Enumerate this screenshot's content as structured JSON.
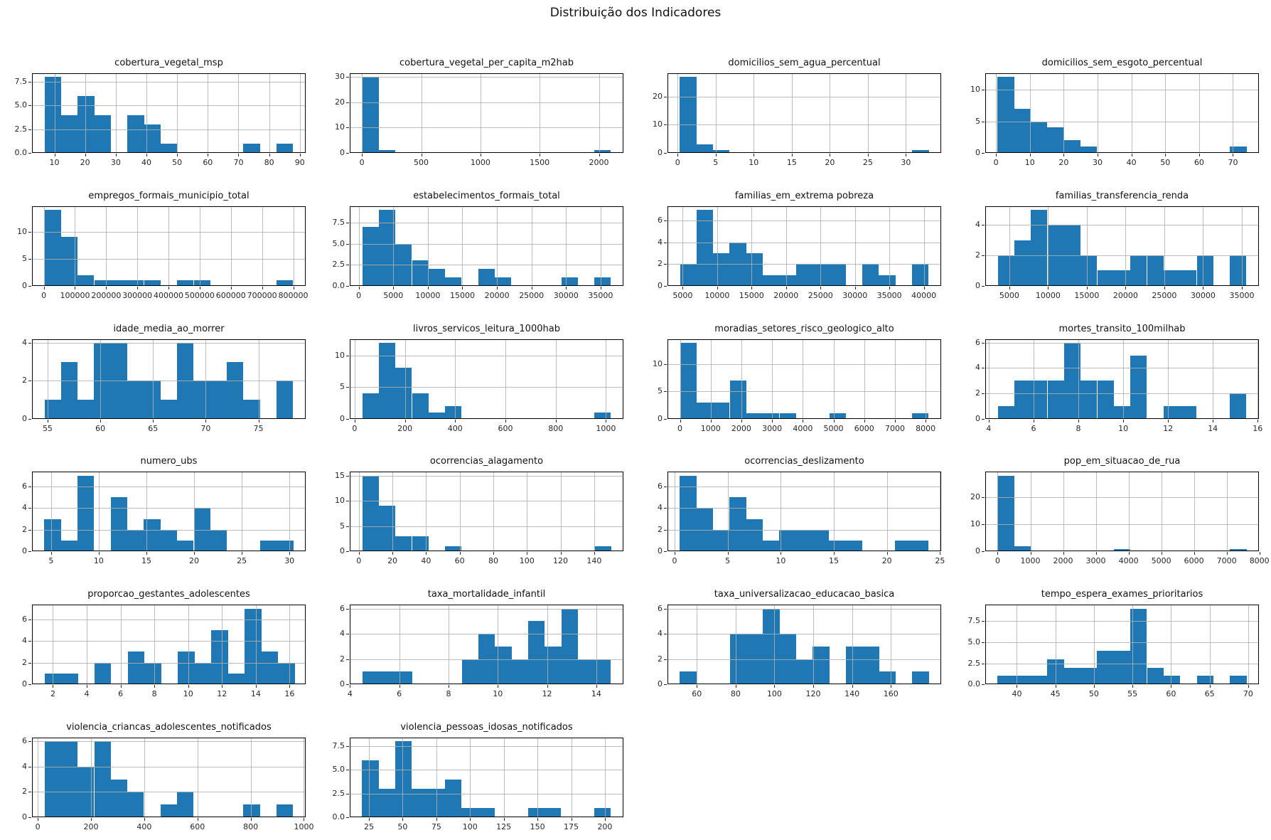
{
  "figure": {
    "title": "Distribuição dos Indicadores",
    "bar_color": "#1f77b4",
    "grid_color": "#b0b0b0",
    "spine_color": "#000000",
    "text_color": "#262626",
    "background": "#ffffff"
  },
  "chart_data": [
    {
      "type": "histogram",
      "title": "cobertura_vegetal_msp",
      "bin_start": 6.8,
      "bin_width": 5.4,
      "counts": [
        8,
        4,
        6,
        4,
        0,
        4,
        3,
        1,
        0,
        0,
        0,
        0,
        1,
        0,
        1
      ],
      "xlim": [
        2.7,
        91.9
      ],
      "xticks": [
        10,
        20,
        30,
        40,
        50,
        60,
        70,
        80,
        90
      ],
      "xtick_labels": [
        "10",
        "20",
        "30",
        "40",
        "50",
        "60",
        "70",
        "80",
        "90"
      ],
      "yticks": [
        0,
        2.5,
        5,
        7.5
      ],
      "ytick_labels": [
        "0.0",
        "2.5",
        "5.0",
        "7.5"
      ],
      "ymax": 8.4
    },
    {
      "type": "histogram",
      "title": "cobertura_vegetal_per_capita_m2hab",
      "bin_start": 2,
      "bin_width": 140,
      "counts": [
        30,
        1,
        0,
        0,
        0,
        0,
        0,
        0,
        0,
        0,
        0,
        0,
        0,
        0,
        1
      ],
      "xlim": [
        -103,
        2207
      ],
      "xticks": [
        0,
        500,
        1000,
        1500,
        2000
      ],
      "xtick_labels": [
        "0",
        "500",
        "1000",
        "1500",
        "2000"
      ],
      "yticks": [
        0,
        10,
        20,
        30
      ],
      "ytick_labels": [
        "0",
        "10",
        "20",
        "30"
      ],
      "ymax": 31.5
    },
    {
      "type": "histogram",
      "title": "domicilios_sem_agua_percentual",
      "bin_start": 0.3,
      "bin_width": 2.18,
      "counts": [
        27,
        3,
        1,
        0,
        0,
        0,
        0,
        0,
        0,
        0,
        0,
        0,
        0,
        0,
        1
      ],
      "xlim": [
        -1.33,
        34.63
      ],
      "xticks": [
        0,
        5,
        10,
        15,
        20,
        25,
        30
      ],
      "xtick_labels": [
        "0",
        "5",
        "10",
        "15",
        "20",
        "25",
        "30"
      ],
      "yticks": [
        0,
        10,
        20
      ],
      "ytick_labels": [
        "0",
        "10",
        "20"
      ],
      "ymax": 28.35
    },
    {
      "type": "histogram",
      "title": "domicilios_sem_esgoto_percentual",
      "bin_start": 0.5,
      "bin_width": 4.9,
      "counts": [
        12,
        7,
        5,
        4,
        2,
        1,
        0,
        0,
        0,
        0,
        0,
        0,
        0,
        0,
        1
      ],
      "xlim": [
        -3.17,
        77.67
      ],
      "xticks": [
        0,
        10,
        20,
        30,
        40,
        50,
        60,
        70
      ],
      "xtick_labels": [
        "0",
        "10",
        "20",
        "30",
        "40",
        "50",
        "60",
        "70"
      ],
      "yticks": [
        0,
        5,
        10
      ],
      "ytick_labels": [
        "0",
        "5",
        "10"
      ],
      "ymax": 12.6
    },
    {
      "type": "histogram",
      "title": "empregos_formais_municipio_total",
      "bin_start": 2000,
      "bin_width": 53200,
      "counts": [
        14,
        9,
        2,
        1,
        1,
        1,
        1,
        0,
        1,
        1,
        0,
        0,
        0,
        0,
        1
      ],
      "xlim": [
        -37900,
        839900
      ],
      "xticks": [
        0,
        100000,
        200000,
        300000,
        400000,
        500000,
        600000,
        700000,
        800000
      ],
      "xtick_labels": [
        "0",
        "100000",
        "200000",
        "300000",
        "400000",
        "500000",
        "600000",
        "700000",
        "800000"
      ],
      "yticks": [
        0,
        5,
        10
      ],
      "ytick_labels": [
        "0",
        "5",
        "10"
      ],
      "ymax": 14.7
    },
    {
      "type": "histogram",
      "title": "estabelecimentos_formais_total",
      "bin_start": 500,
      "bin_width": 2400,
      "counts": [
        7,
        9,
        5,
        3,
        2,
        1,
        0,
        2,
        1,
        0,
        0,
        0,
        1,
        0,
        1
      ],
      "xlim": [
        -1300,
        38300
      ],
      "xticks": [
        0,
        5000,
        10000,
        15000,
        20000,
        25000,
        30000,
        35000
      ],
      "xtick_labels": [
        "0",
        "5000",
        "10000",
        "15000",
        "20000",
        "25000",
        "30000",
        "35000"
      ],
      "yticks": [
        0,
        2.5,
        5,
        7.5
      ],
      "ytick_labels": [
        "0.0",
        "2.5",
        "5.0",
        "7.5"
      ],
      "ymax": 9.45
    },
    {
      "type": "histogram",
      "title": "familias_em_extrema pobreza",
      "bin_start": 4600,
      "bin_width": 2407,
      "counts": [
        2,
        7,
        3,
        4,
        3,
        1,
        1,
        2,
        2,
        2,
        0,
        2,
        1,
        0,
        2
      ],
      "xlim": [
        2795,
        42512
      ],
      "xticks": [
        5000,
        10000,
        15000,
        20000,
        25000,
        30000,
        35000,
        40000
      ],
      "xtick_labels": [
        "5000",
        "10000",
        "15000",
        "20000",
        "25000",
        "30000",
        "35000",
        "40000"
      ],
      "yticks": [
        0,
        2,
        4,
        6
      ],
      "ytick_labels": [
        "0",
        "2",
        "4",
        "6"
      ],
      "ymax": 7.35
    },
    {
      "type": "histogram",
      "title": "familias_transferencia_renda",
      "bin_start": 3500,
      "bin_width": 2140,
      "counts": [
        2,
        3,
        5,
        4,
        4,
        2,
        1,
        1,
        2,
        2,
        1,
        1,
        2,
        0,
        2
      ],
      "xlim": [
        1895,
        37205
      ],
      "xticks": [
        5000,
        10000,
        15000,
        20000,
        25000,
        30000,
        35000
      ],
      "xtick_labels": [
        "5000",
        "10000",
        "15000",
        "20000",
        "25000",
        "30000",
        "35000"
      ],
      "yticks": [
        0,
        2,
        4
      ],
      "ytick_labels": [
        "0",
        "2",
        "4"
      ],
      "ymax": 5.25
    },
    {
      "type": "histogram",
      "title": "idade_media_ao_morrer",
      "bin_start": 54.7,
      "bin_width": 1.573,
      "counts": [
        1,
        3,
        1,
        4,
        4,
        2,
        2,
        1,
        4,
        2,
        2,
        3,
        1,
        0,
        2
      ],
      "xlim": [
        53.52,
        79.48
      ],
      "xticks": [
        55,
        60,
        65,
        70,
        75
      ],
      "xtick_labels": [
        "55",
        "60",
        "65",
        "70",
        "75"
      ],
      "yticks": [
        0,
        2,
        4
      ],
      "ytick_labels": [
        "0",
        "2",
        "4"
      ],
      "ymax": 4.2
    },
    {
      "type": "histogram",
      "title": "livros_servicos_leitura_1000hab",
      "bin_start": 30,
      "bin_width": 66,
      "counts": [
        4,
        12,
        8,
        4,
        1,
        2,
        0,
        0,
        0,
        0,
        0,
        0,
        0,
        0,
        1
      ],
      "xlim": [
        -19.5,
        1069.5
      ],
      "xticks": [
        0,
        200,
        400,
        600,
        800,
        1000
      ],
      "xtick_labels": [
        "0",
        "200",
        "400",
        "600",
        "800",
        "1000"
      ],
      "yticks": [
        0,
        5,
        10
      ],
      "ytick_labels": [
        "0",
        "5",
        "10"
      ],
      "ymax": 12.6
    },
    {
      "type": "histogram",
      "title": "moradias_setores_risco_geologico_alto",
      "bin_start": 0,
      "bin_width": 540,
      "counts": [
        14,
        3,
        3,
        7,
        1,
        1,
        1,
        0,
        0,
        1,
        0,
        0,
        0,
        0,
        1
      ],
      "xlim": [
        -405,
        8505
      ],
      "xticks": [
        0,
        1000,
        2000,
        3000,
        4000,
        5000,
        6000,
        7000,
        8000
      ],
      "xtick_labels": [
        "0",
        "1000",
        "2000",
        "3000",
        "4000",
        "5000",
        "6000",
        "7000",
        "8000"
      ],
      "yticks": [
        0,
        5,
        10
      ],
      "ytick_labels": [
        "0",
        "5",
        "10"
      ],
      "ymax": 14.7
    },
    {
      "type": "histogram",
      "title": "mortes_transito_100milhab",
      "bin_start": 4.4,
      "bin_width": 0.74,
      "counts": [
        1,
        3,
        3,
        3,
        6,
        3,
        3,
        1,
        5,
        0,
        1,
        1,
        0,
        0,
        2
      ],
      "xlim": [
        3.845,
        16.055
      ],
      "xticks": [
        4,
        6,
        8,
        10,
        12,
        14,
        16
      ],
      "xtick_labels": [
        "4",
        "6",
        "8",
        "10",
        "12",
        "14",
        "16"
      ],
      "yticks": [
        0,
        2,
        4,
        6
      ],
      "ytick_labels": [
        "0",
        "2",
        "4",
        "6"
      ],
      "ymax": 6.3
    },
    {
      "type": "histogram",
      "title": "numero_ubs",
      "bin_start": 4.3,
      "bin_width": 1.74,
      "counts": [
        3,
        1,
        7,
        0,
        5,
        2,
        3,
        2,
        1,
        4,
        2,
        0,
        0,
        1,
        1
      ],
      "xlim": [
        3.0,
        31.7
      ],
      "xticks": [
        5,
        10,
        15,
        20,
        25,
        30
      ],
      "xtick_labels": [
        "5",
        "10",
        "15",
        "20",
        "25",
        "30"
      ],
      "yticks": [
        0,
        2,
        4,
        6
      ],
      "ytick_labels": [
        "0",
        "2",
        "4",
        "6"
      ],
      "ymax": 7.35
    },
    {
      "type": "histogram",
      "title": "ocorrencias_alagamento",
      "bin_start": 2,
      "bin_width": 9.867,
      "counts": [
        15,
        9,
        3,
        3,
        0,
        1,
        0,
        0,
        0,
        0,
        0,
        0,
        0,
        0,
        1
      ],
      "xlim": [
        -5.4,
        157.4
      ],
      "xticks": [
        0,
        20,
        40,
        60,
        80,
        100,
        120,
        140
      ],
      "xtick_labels": [
        "0",
        "20",
        "40",
        "60",
        "80",
        "100",
        "120",
        "140"
      ],
      "yticks": [
        0,
        5,
        10,
        15
      ],
      "ytick_labels": [
        "0",
        "5",
        "10",
        "15"
      ],
      "ymax": 15.75
    },
    {
      "type": "histogram",
      "title": "ocorrencias_deslizamento",
      "bin_start": 0.5,
      "bin_width": 1.56,
      "counts": [
        7,
        4,
        2,
        5,
        3,
        1,
        2,
        2,
        2,
        1,
        1,
        0,
        0,
        1,
        1
      ],
      "xlim": [
        -0.67,
        25.11
      ],
      "xticks": [
        0,
        5,
        10,
        15,
        20,
        25
      ],
      "xtick_labels": [
        "0",
        "5",
        "10",
        "15",
        "20",
        "25"
      ],
      "yticks": [
        0,
        2,
        4,
        6
      ],
      "ytick_labels": [
        "0",
        "2",
        "4",
        "6"
      ],
      "ymax": 7.35
    },
    {
      "type": "histogram",
      "title": "pop_em_situacao_de_rua",
      "bin_start": 0,
      "bin_width": 507,
      "counts": [
        28,
        2,
        0,
        0,
        0,
        0,
        0,
        1,
        0,
        0,
        0,
        0,
        0,
        0,
        1
      ],
      "xlim": [
        -380,
        7985
      ],
      "xticks": [
        0,
        1000,
        2000,
        3000,
        4000,
        5000,
        6000,
        7000,
        8000
      ],
      "xtick_labels": [
        "0",
        "1000",
        "2000",
        "3000",
        "4000",
        "5000",
        "6000",
        "7000",
        "8000"
      ],
      "yticks": [
        0,
        10,
        20
      ],
      "ytick_labels": [
        "0",
        "10",
        "20"
      ],
      "ymax": 29.4
    },
    {
      "type": "histogram",
      "title": "proporcao_gestantes_adolescentes",
      "bin_start": 1.5,
      "bin_width": 0.987,
      "counts": [
        1,
        1,
        0,
        2,
        0,
        3,
        2,
        0,
        3,
        2,
        5,
        1,
        7,
        3,
        2
      ],
      "xlim": [
        0.76,
        16.95
      ],
      "xticks": [
        2,
        4,
        6,
        8,
        10,
        12,
        14,
        16
      ],
      "xtick_labels": [
        "2",
        "4",
        "6",
        "8",
        "10",
        "12",
        "14",
        "16"
      ],
      "yticks": [
        0,
        2,
        4,
        6
      ],
      "ytick_labels": [
        "0",
        "2",
        "4",
        "6"
      ],
      "ymax": 7.35
    },
    {
      "type": "histogram",
      "title": "taxa_mortalidade_infantil",
      "bin_start": 4.5,
      "bin_width": 0.673,
      "counts": [
        1,
        1,
        1,
        0,
        0,
        0,
        2,
        4,
        3,
        2,
        5,
        3,
        6,
        2,
        2
      ],
      "xlim": [
        3.99,
        15.1
      ],
      "xticks": [
        4,
        6,
        8,
        10,
        12,
        14
      ],
      "xtick_labels": [
        "4",
        "6",
        "8",
        "10",
        "12",
        "14"
      ],
      "yticks": [
        0,
        2,
        4,
        6
      ],
      "ytick_labels": [
        "0",
        "2",
        "4",
        "6"
      ],
      "ymax": 6.3
    },
    {
      "type": "histogram",
      "title": "taxa_universalizacao_educacao_basica",
      "bin_start": 51.3,
      "bin_width": 8.55,
      "counts": [
        1,
        0,
        0,
        4,
        4,
        6,
        4,
        2,
        3,
        0,
        3,
        3,
        1,
        0,
        1
      ],
      "xlim": [
        44.9,
        185.9
      ],
      "xticks": [
        60,
        80,
        100,
        120,
        140,
        160
      ],
      "xtick_labels": [
        "60",
        "80",
        "100",
        "120",
        "140",
        "160"
      ],
      "yticks": [
        0,
        2,
        4,
        6
      ],
      "ytick_labels": [
        "0",
        "2",
        "4",
        "6"
      ],
      "ymax": 6.3
    },
    {
      "type": "histogram",
      "title": "tempo_espera_exames_prioritarios",
      "bin_start": 37.5,
      "bin_width": 2.153,
      "counts": [
        1,
        1,
        1,
        3,
        2,
        2,
        4,
        4,
        9,
        2,
        1,
        0,
        1,
        0,
        1
      ],
      "xlim": [
        35.9,
        71.4
      ],
      "xticks": [
        40,
        45,
        50,
        55,
        60,
        65,
        70
      ],
      "xtick_labels": [
        "40",
        "45",
        "50",
        "55",
        "60",
        "65",
        "70"
      ],
      "yticks": [
        0,
        2.5,
        5,
        7.5
      ],
      "ytick_labels": [
        "0.0",
        "2.5",
        "5.0",
        "7.5"
      ],
      "ymax": 9.45
    },
    {
      "type": "histogram",
      "title": "violencia_criancas_adolescentes_notificados",
      "bin_start": 25,
      "bin_width": 62.33,
      "counts": [
        6,
        6,
        4,
        6,
        3,
        2,
        0,
        1,
        2,
        0,
        0,
        0,
        1,
        0,
        1
      ],
      "xlim": [
        -21.75,
        1006.75
      ],
      "xticks": [
        0,
        200,
        400,
        600,
        800,
        1000
      ],
      "xtick_labels": [
        "0",
        "200",
        "400",
        "600",
        "800",
        "1000"
      ],
      "yticks": [
        0,
        2,
        4,
        6
      ],
      "ytick_labels": [
        "0",
        "2",
        "4",
        "6"
      ],
      "ymax": 6.3
    },
    {
      "type": "histogram",
      "title": "violencia_pessoas_idosas_notificados",
      "bin_start": 20,
      "bin_width": 12.3,
      "counts": [
        6,
        3,
        8,
        3,
        3,
        4,
        1,
        1,
        0,
        0,
        1,
        1,
        0,
        0,
        1
      ],
      "xlim": [
        10.78,
        213.73
      ],
      "xticks": [
        25,
        50,
        75,
        100,
        125,
        150,
        175,
        200
      ],
      "xtick_labels": [
        "25",
        "50",
        "75",
        "100",
        "125",
        "150",
        "175",
        "200"
      ],
      "yticks": [
        0,
        2.5,
        5,
        7.5
      ],
      "ytick_labels": [
        "0.0",
        "2.5",
        "5.0",
        "7.5"
      ],
      "ymax": 8.4
    }
  ]
}
